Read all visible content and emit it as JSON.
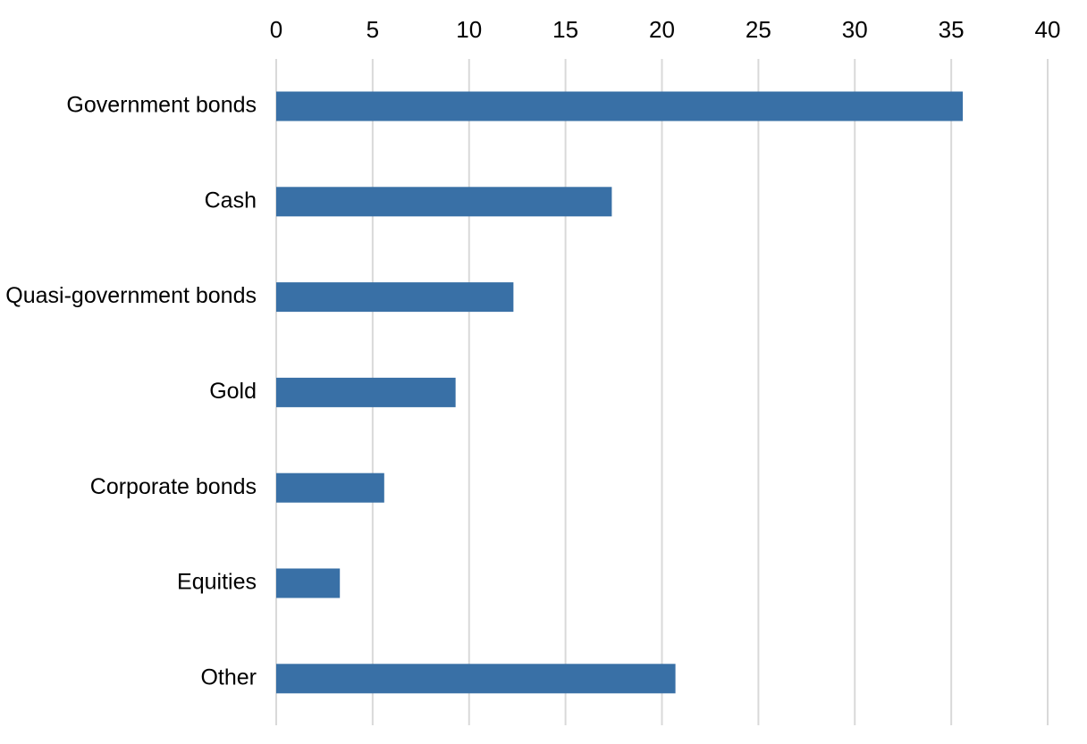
{
  "chart_data": {
    "type": "bar",
    "orientation": "horizontal",
    "title": "",
    "xlabel": "",
    "ylabel": "",
    "categories": [
      "Government bonds",
      "Cash",
      "Quasi-government bonds",
      "Gold",
      "Corporate bonds",
      "Equities",
      "Other"
    ],
    "values": [
      35.6,
      17.4,
      12.3,
      9.3,
      5.6,
      3.3,
      20.7
    ],
    "xlim": [
      0,
      40
    ],
    "x_ticks": [
      "0",
      "5",
      "10",
      "15",
      "20",
      "25",
      "30",
      "35",
      "40"
    ],
    "x_axis_position": "top",
    "grid": true,
    "legend": "none",
    "colors": {
      "bar": "#3970a6",
      "grid": "#d9d9d9",
      "text": "#000000"
    }
  }
}
